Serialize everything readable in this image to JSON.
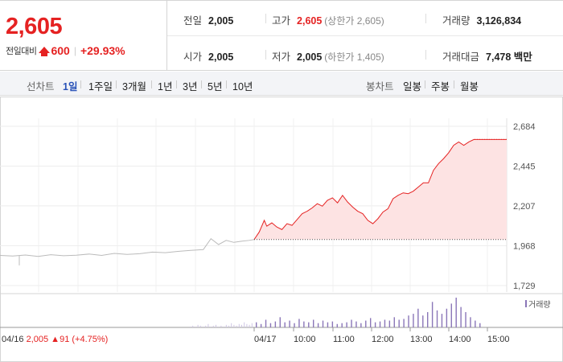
{
  "quote": {
    "price": "2,605",
    "change_label": "전일대비",
    "change_amount": "600",
    "change_pct": "+29.93%",
    "up_icon": "up-triangle-icon"
  },
  "stats": {
    "prev_close": {
      "label": "전일",
      "value": "2,005"
    },
    "open": {
      "label": "시가",
      "value": "2,005"
    },
    "high": {
      "label": "고가",
      "value": "2,605",
      "sub": "(상한가 2,605)"
    },
    "low": {
      "label": "저가",
      "value": "2,005",
      "sub": "(하한가 1,405)"
    },
    "volume": {
      "label": "거래량",
      "value": "3,126,834"
    },
    "trade_value": {
      "label": "거래대금",
      "value": "7,478 백만"
    }
  },
  "periods": {
    "label": "선차트",
    "items": [
      "1일",
      "1주일",
      "3개월",
      "1년",
      "3년",
      "5년",
      "10년"
    ],
    "active": "1일"
  },
  "candles": {
    "label": "봉차트",
    "items": [
      "일봉",
      "주봉",
      "월봉"
    ]
  },
  "colors": {
    "up": "#e52222",
    "accent": "#2952b8",
    "prev_day_line": "#bbbbbb",
    "area_fill": "#fde3e3",
    "volume_bar": "#8a76b8"
  },
  "chart_data": {
    "type": "line",
    "y_ticks": [
      "2,684",
      "2,445",
      "2,207",
      "1,968",
      "1,729"
    ],
    "ylim": [
      1729,
      2684
    ],
    "y_tick_values": [
      2684,
      2445,
      2207,
      1968,
      1729
    ],
    "x_labels": [
      "04/17",
      "10:00",
      "11:00",
      "12:00",
      "13:00",
      "14:00",
      "15:00"
    ],
    "prev_day": {
      "date_label": "04/16",
      "close": "2,005",
      "change": "91",
      "change_pct": "(+4.75%)",
      "points": [
        [
          0,
          1910
        ],
        [
          0.05,
          1906
        ],
        [
          0.1,
          1912
        ],
        [
          0.15,
          1904
        ],
        [
          0.2,
          1914
        ],
        [
          0.25,
          1908
        ],
        [
          0.3,
          1911
        ],
        [
          0.35,
          1918
        ],
        [
          0.4,
          1910
        ],
        [
          0.45,
          1922
        ],
        [
          0.5,
          1916
        ],
        [
          0.55,
          1920
        ],
        [
          0.6,
          1930
        ],
        [
          0.65,
          1926
        ],
        [
          0.7,
          1934
        ],
        [
          0.75,
          1940
        ],
        [
          0.8,
          1945
        ],
        [
          0.83,
          2010
        ],
        [
          0.86,
          1975
        ],
        [
          0.89,
          2000
        ],
        [
          0.92,
          1988
        ],
        [
          0.95,
          1995
        ],
        [
          0.98,
          2000
        ],
        [
          1.0,
          2005
        ]
      ]
    },
    "today": {
      "base": 2005,
      "points": [
        [
          0,
          2005
        ],
        [
          0.02,
          2050
        ],
        [
          0.04,
          2120
        ],
        [
          0.05,
          2085
        ],
        [
          0.07,
          2105
        ],
        [
          0.09,
          2080
        ],
        [
          0.11,
          2065
        ],
        [
          0.13,
          2100
        ],
        [
          0.15,
          2090
        ],
        [
          0.17,
          2125
        ],
        [
          0.19,
          2160
        ],
        [
          0.21,
          2175
        ],
        [
          0.23,
          2195
        ],
        [
          0.25,
          2220
        ],
        [
          0.27,
          2205
        ],
        [
          0.29,
          2240
        ],
        [
          0.31,
          2255
        ],
        [
          0.33,
          2225
        ],
        [
          0.35,
          2270
        ],
        [
          0.37,
          2230
        ],
        [
          0.39,
          2200
        ],
        [
          0.41,
          2175
        ],
        [
          0.43,
          2160
        ],
        [
          0.45,
          2120
        ],
        [
          0.47,
          2100
        ],
        [
          0.49,
          2130
        ],
        [
          0.51,
          2170
        ],
        [
          0.53,
          2190
        ],
        [
          0.55,
          2250
        ],
        [
          0.57,
          2270
        ],
        [
          0.59,
          2285
        ],
        [
          0.61,
          2280
        ],
        [
          0.63,
          2295
        ],
        [
          0.65,
          2320
        ],
        [
          0.67,
          2345
        ],
        [
          0.69,
          2345
        ],
        [
          0.71,
          2420
        ],
        [
          0.73,
          2460
        ],
        [
          0.75,
          2490
        ],
        [
          0.77,
          2525
        ],
        [
          0.79,
          2570
        ],
        [
          0.81,
          2590
        ],
        [
          0.83,
          2570
        ],
        [
          0.85,
          2590
        ],
        [
          0.87,
          2605
        ],
        [
          0.9,
          2605
        ],
        [
          0.93,
          2605
        ],
        [
          1.0,
          2605
        ]
      ]
    },
    "volume_legend": "거래량",
    "volume": {
      "prev_day": [
        1,
        2,
        1,
        3,
        2,
        1,
        2,
        4,
        1,
        2,
        3,
        1,
        2,
        1,
        3,
        2,
        5,
        3,
        2,
        4,
        3,
        6,
        4,
        3,
        5
      ],
      "today": [
        6,
        4,
        9,
        5,
        7,
        12,
        6,
        8,
        5,
        10,
        7,
        6,
        9,
        5,
        8,
        6,
        7,
        4,
        5,
        6,
        9,
        7,
        5,
        8,
        11,
        6,
        7,
        9,
        8,
        12,
        9,
        10,
        14,
        16,
        22,
        14,
        18,
        30,
        20,
        16,
        22,
        28,
        35,
        24,
        18,
        12,
        8,
        5
      ]
    },
    "grid": true
  }
}
